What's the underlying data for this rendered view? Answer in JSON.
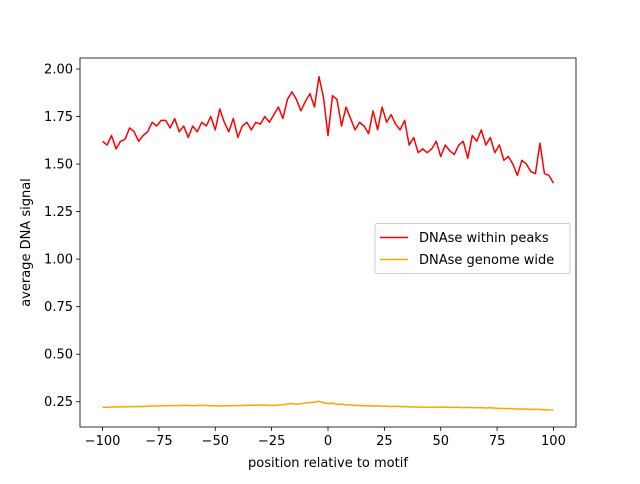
{
  "chart_data": {
    "type": "line",
    "xlabel": "position relative to motif",
    "ylabel": "average DNA signal",
    "x": [
      -100,
      -98,
      -96,
      -94,
      -92,
      -90,
      -88,
      -86,
      -84,
      -82,
      -80,
      -78,
      -76,
      -74,
      -72,
      -70,
      -68,
      -66,
      -64,
      -62,
      -60,
      -58,
      -56,
      -54,
      -52,
      -50,
      -48,
      -46,
      -44,
      -42,
      -40,
      -38,
      -36,
      -34,
      -32,
      -30,
      -28,
      -26,
      -24,
      -22,
      -20,
      -18,
      -16,
      -14,
      -12,
      -10,
      -8,
      -6,
      -4,
      -2,
      0,
      2,
      4,
      6,
      8,
      10,
      12,
      14,
      16,
      18,
      20,
      22,
      24,
      26,
      28,
      30,
      32,
      34,
      36,
      38,
      40,
      42,
      44,
      46,
      48,
      50,
      52,
      54,
      56,
      58,
      60,
      62,
      64,
      66,
      68,
      70,
      72,
      74,
      76,
      78,
      80,
      82,
      84,
      86,
      88,
      90,
      92,
      94,
      96,
      98,
      100
    ],
    "series": [
      {
        "name": "DNAse within peaks",
        "color": "#ff0000",
        "values": [
          1.62,
          1.6,
          1.65,
          1.58,
          1.62,
          1.63,
          1.69,
          1.67,
          1.62,
          1.65,
          1.67,
          1.72,
          1.7,
          1.73,
          1.73,
          1.69,
          1.74,
          1.67,
          1.7,
          1.64,
          1.7,
          1.67,
          1.72,
          1.7,
          1.75,
          1.68,
          1.79,
          1.72,
          1.67,
          1.74,
          1.64,
          1.7,
          1.72,
          1.68,
          1.72,
          1.71,
          1.75,
          1.72,
          1.76,
          1.8,
          1.74,
          1.84,
          1.88,
          1.84,
          1.78,
          1.83,
          1.87,
          1.8,
          1.96,
          1.85,
          1.65,
          1.86,
          1.84,
          1.7,
          1.8,
          1.74,
          1.68,
          1.72,
          1.7,
          1.66,
          1.78,
          1.68,
          1.8,
          1.72,
          1.76,
          1.71,
          1.68,
          1.73,
          1.6,
          1.64,
          1.56,
          1.58,
          1.56,
          1.58,
          1.62,
          1.54,
          1.6,
          1.57,
          1.55,
          1.6,
          1.62,
          1.53,
          1.65,
          1.62,
          1.68,
          1.6,
          1.64,
          1.56,
          1.6,
          1.52,
          1.54,
          1.5,
          1.44,
          1.52,
          1.5,
          1.46,
          1.45,
          1.61,
          1.45,
          1.44,
          1.4
        ]
      },
      {
        "name": "DNAse genome wide",
        "color": "#ffa500",
        "values": [
          0.22,
          0.221,
          0.222,
          0.222,
          0.223,
          0.223,
          0.224,
          0.224,
          0.225,
          0.225,
          0.226,
          0.227,
          0.228,
          0.228,
          0.229,
          0.23,
          0.229,
          0.23,
          0.231,
          0.23,
          0.229,
          0.23,
          0.231,
          0.23,
          0.229,
          0.228,
          0.229,
          0.228,
          0.229,
          0.23,
          0.229,
          0.23,
          0.231,
          0.232,
          0.231,
          0.233,
          0.232,
          0.231,
          0.23,
          0.232,
          0.234,
          0.238,
          0.24,
          0.236,
          0.24,
          0.244,
          0.246,
          0.248,
          0.252,
          0.245,
          0.24,
          0.242,
          0.236,
          0.238,
          0.232,
          0.234,
          0.23,
          0.231,
          0.228,
          0.229,
          0.227,
          0.228,
          0.226,
          0.227,
          0.225,
          0.226,
          0.224,
          0.225,
          0.223,
          0.222,
          0.221,
          0.222,
          0.221,
          0.22,
          0.221,
          0.222,
          0.221,
          0.22,
          0.221,
          0.22,
          0.219,
          0.22,
          0.219,
          0.218,
          0.219,
          0.217,
          0.218,
          0.216,
          0.215,
          0.214,
          0.214,
          0.213,
          0.212,
          0.212,
          0.211,
          0.21,
          0.21,
          0.209,
          0.208,
          0.207,
          0.206
        ]
      }
    ],
    "xlim": [
      -110,
      110
    ],
    "ylim": [
      0.117,
      2.058
    ],
    "xticks": [
      {
        "value": -100,
        "label": "−100"
      },
      {
        "value": -75,
        "label": "−75"
      },
      {
        "value": -50,
        "label": "−50"
      },
      {
        "value": -25,
        "label": "−25"
      },
      0,
      25,
      50,
      75,
      100
    ],
    "yticks": [
      0.25,
      {
        "value": 0.5,
        "label": "0.50"
      },
      0.75,
      {
        "value": 1,
        "label": "1.00"
      },
      1.25,
      {
        "value": 1.5,
        "label": "1.50"
      },
      1.75,
      {
        "value": 2,
        "label": "2.00"
      }
    ],
    "legend": "center right",
    "grid": false
  }
}
